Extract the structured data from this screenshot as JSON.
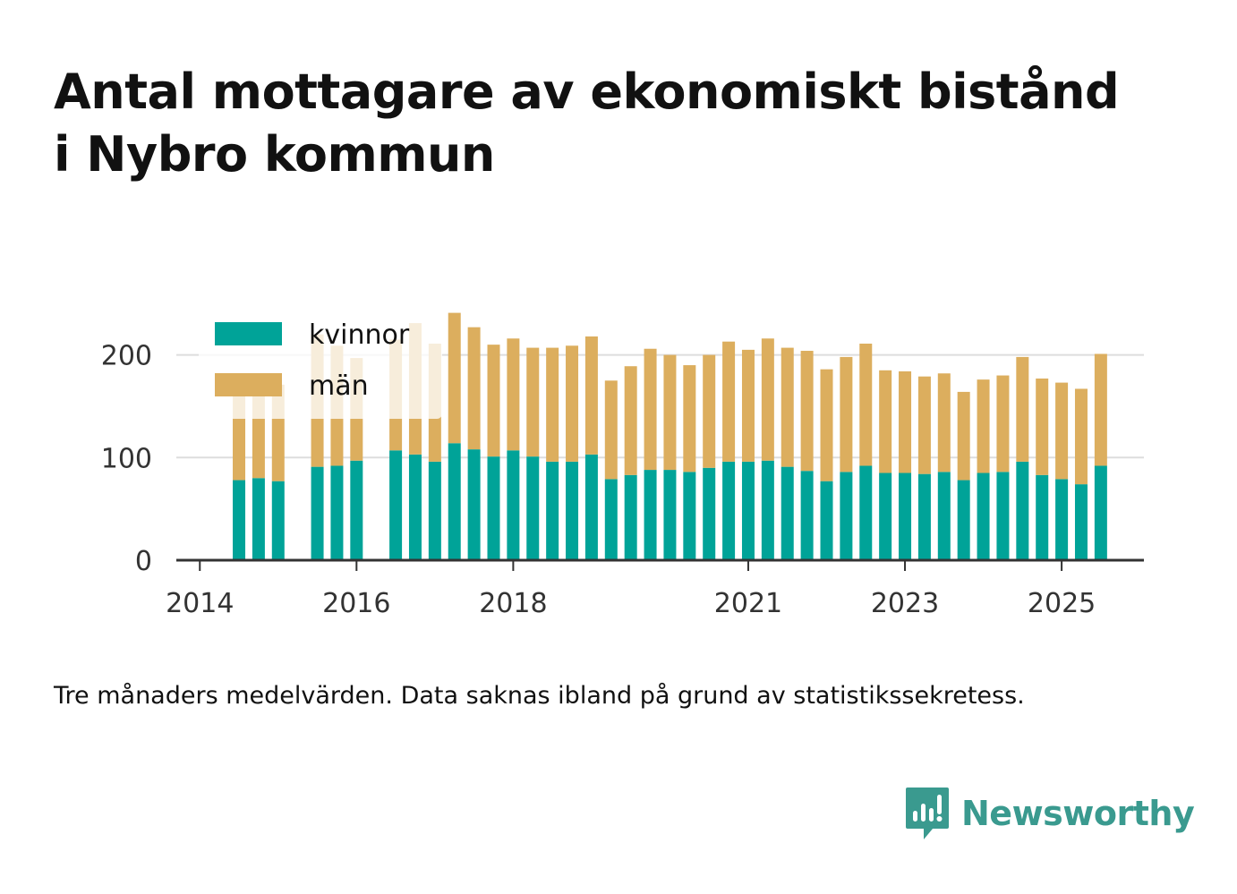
{
  "title_lines": [
    "Antal mottagare av ekonomiskt bistånd",
    "i Nybro kommun"
  ],
  "footnote": "Tre månaders medelvärden. Data saknas ibland på grund av statistikssekretess.",
  "brand": {
    "name": "Newsworthy",
    "icon": "newsworthy-logo-icon",
    "color": "#3a9a8f"
  },
  "chart_data": {
    "type": "bar",
    "stacked": true,
    "title": "Antal mottagare av ekonomiskt bistånd i Nybro kommun",
    "ylim": [
      0,
      245
    ],
    "xlim": [
      2013.7,
      2026.05
    ],
    "yticks": [
      0,
      100,
      200
    ],
    "xticks": [
      2014,
      2016,
      2018,
      2021,
      2023,
      2025
    ],
    "grid": true,
    "legend_position": "top-left",
    "x": [
      2014.5,
      2014.75,
      2015.0,
      2015.5,
      2015.75,
      2016.0,
      2016.5,
      2016.75,
      2017.0,
      2017.25,
      2017.5,
      2017.75,
      2018.0,
      2018.25,
      2018.5,
      2018.75,
      2019.0,
      2019.25,
      2019.5,
      2019.75,
      2020.0,
      2020.25,
      2020.5,
      2020.75,
      2021.0,
      2021.25,
      2021.5,
      2021.75,
      2022.0,
      2022.25,
      2022.5,
      2022.75,
      2023.0,
      2023.25,
      2023.5,
      2023.75,
      2024.0,
      2024.25,
      2024.5,
      2024.75,
      2025.0,
      2025.25,
      2025.5
    ],
    "series": [
      {
        "name": "kvinnor",
        "color": "#00a398",
        "values": [
          78,
          80,
          77,
          91,
          92,
          97,
          107,
          103,
          96,
          114,
          108,
          101,
          107,
          101,
          96,
          96,
          103,
          79,
          83,
          88,
          88,
          86,
          90,
          96,
          96,
          97,
          91,
          87,
          77,
          86,
          92,
          85,
          85,
          84,
          86,
          78,
          85,
          86,
          96,
          83,
          79,
          74,
          92
        ]
      },
      {
        "name": "män",
        "color": "#dcae5e",
        "values": [
          94,
          90,
          94,
          129,
          117,
          100,
          108,
          128,
          115,
          127,
          119,
          109,
          109,
          106,
          111,
          113,
          115,
          96,
          106,
          118,
          112,
          104,
          110,
          117,
          109,
          119,
          116,
          117,
          109,
          112,
          119,
          100,
          99,
          95,
          96,
          86,
          91,
          94,
          102,
          94,
          94,
          93,
          109
        ]
      }
    ]
  }
}
